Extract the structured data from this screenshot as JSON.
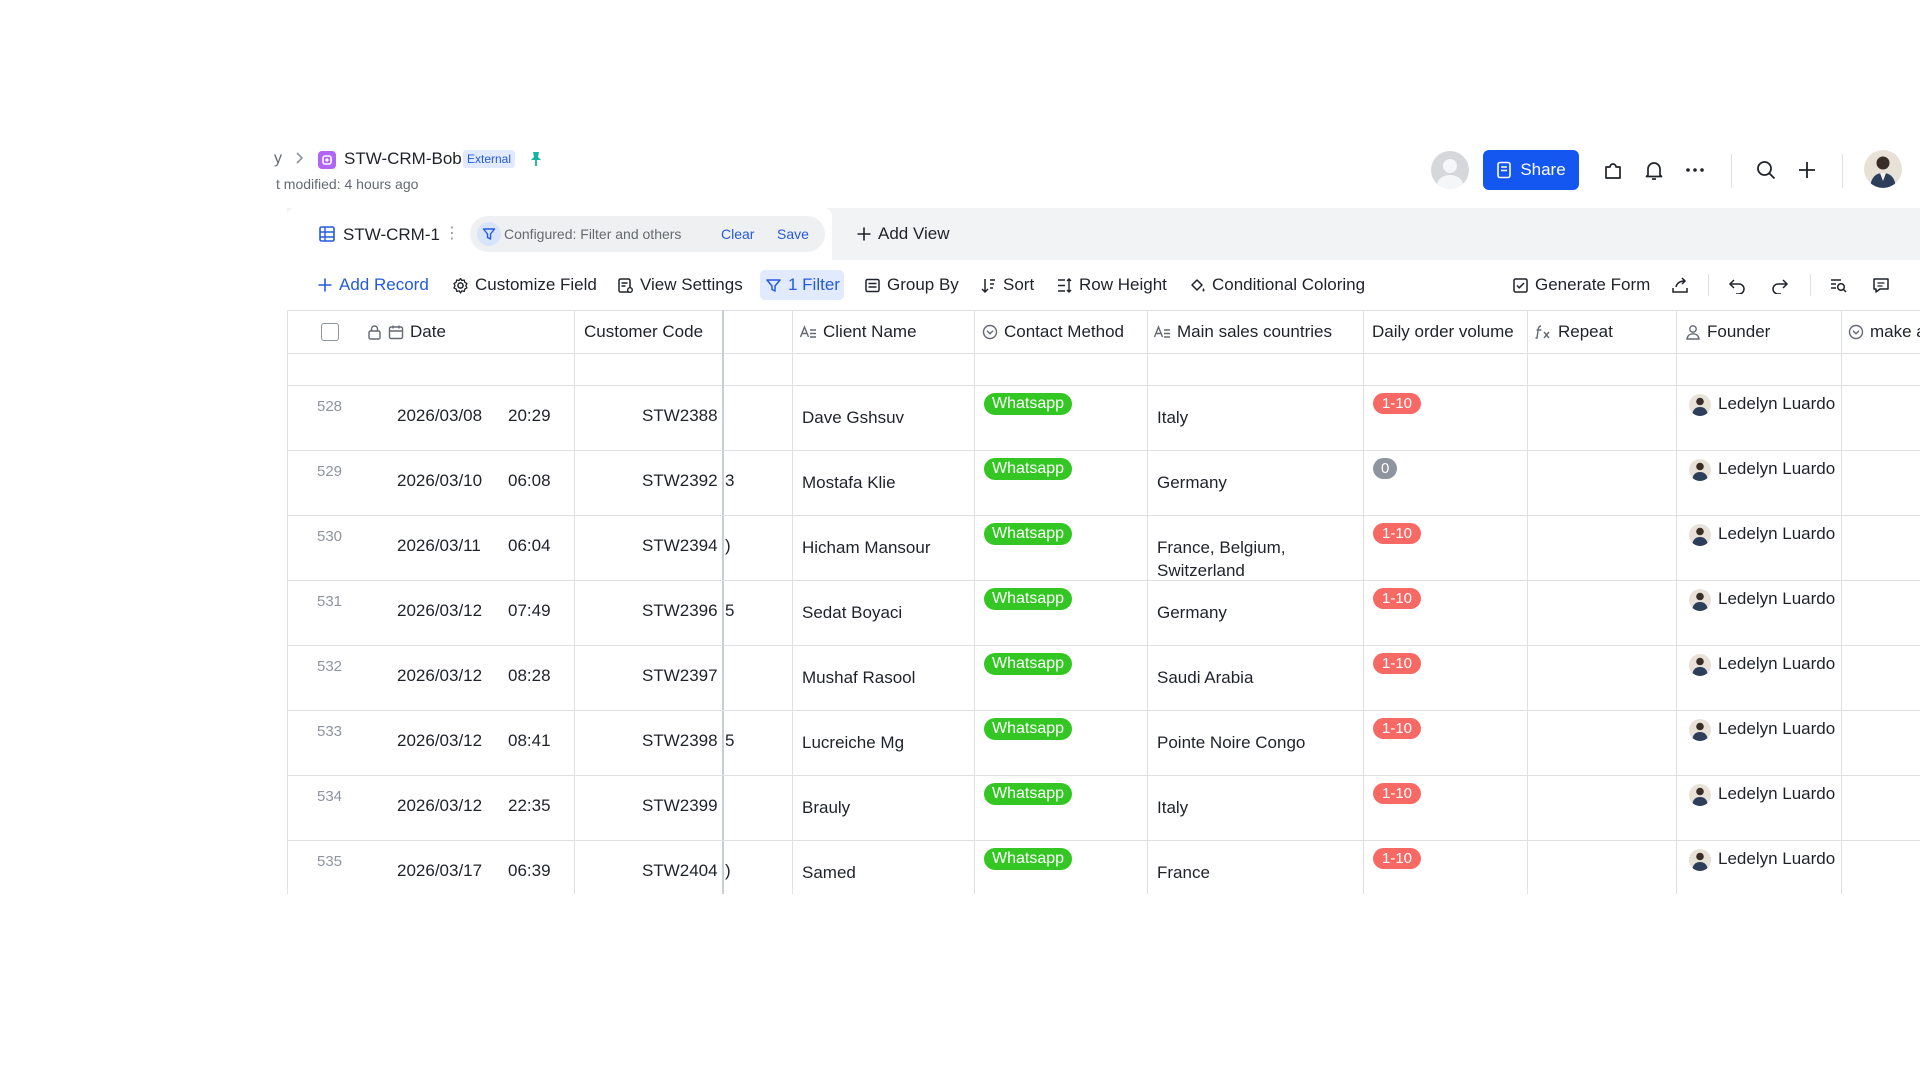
{
  "header": {
    "breadcrumb_prev": "y",
    "title": "STW-CRM-Bob",
    "badge": "External",
    "modified": "t modified: 4 hours ago",
    "share_label": "Share"
  },
  "viewbar": {
    "tab_name": "STW-CRM-1",
    "configured_text": "Configured: Filter and others",
    "clear_label": "Clear",
    "save_label": "Save",
    "add_view_label": "Add View"
  },
  "toolbar": {
    "add_record": "Add Record",
    "customize_field": "Customize Field",
    "view_settings": "View Settings",
    "filter": "1 Filter",
    "group_by": "Group By",
    "sort": "Sort",
    "row_height": "Row Height",
    "conditional_coloring": "Conditional Coloring",
    "generate_form": "Generate Form"
  },
  "columns": {
    "date": "Date",
    "customer_code": "Customer Code",
    "client_name": "Client Name",
    "contact_method": "Contact Method",
    "main_sales_countries": "Main sales countries",
    "daily_order_volume": "Daily order volume",
    "repeat": "Repeat",
    "founder": "Founder",
    "make": "make a"
  },
  "rows": [
    {
      "num": "528",
      "date": "2026/03/08",
      "time": "20:29",
      "code": "STW2388",
      "frag": "",
      "client": "Dave Gshsuv",
      "contact": "Whatsapp",
      "countries_1": "Italy",
      "countries_2": "",
      "volume": "1-10",
      "volume_type": "red",
      "founder": "Ledelyn Luardo"
    },
    {
      "num": "529",
      "date": "2026/03/10",
      "time": "06:08",
      "code": "STW2392",
      "frag": "3",
      "client": "Mostafa Klie",
      "contact": "Whatsapp",
      "countries_1": "Germany",
      "countries_2": "",
      "volume": "0",
      "volume_type": "gray",
      "founder": "Ledelyn Luardo"
    },
    {
      "num": "530",
      "date": "2026/03/11",
      "time": "06:04",
      "code": "STW2394",
      "frag": ")",
      "client": "Hicham Mansour",
      "contact": "Whatsapp",
      "countries_1": "France, Belgium,",
      "countries_2": "Switzerland",
      "volume": "1-10",
      "volume_type": "red",
      "founder": "Ledelyn Luardo"
    },
    {
      "num": "531",
      "date": "2026/03/12",
      "time": "07:49",
      "code": "STW2396",
      "frag": "5",
      "client": "Sedat Boyaci",
      "contact": "Whatsapp",
      "countries_1": "Germany",
      "countries_2": "",
      "volume": "1-10",
      "volume_type": "red",
      "founder": "Ledelyn Luardo"
    },
    {
      "num": "532",
      "date": "2026/03/12",
      "time": "08:28",
      "code": "STW2397",
      "frag": "",
      "client": "Mushaf Rasool",
      "contact": "Whatsapp",
      "countries_1": "Saudi Arabia",
      "countries_2": "",
      "volume": "1-10",
      "volume_type": "red",
      "founder": "Ledelyn Luardo"
    },
    {
      "num": "533",
      "date": "2026/03/12",
      "time": "08:41",
      "code": "STW2398",
      "frag": "5",
      "client": "Lucreiche Mg",
      "contact": "Whatsapp",
      "countries_1": "Pointe Noire Congo",
      "countries_2": "",
      "volume": "1-10",
      "volume_type": "red",
      "founder": "Ledelyn Luardo"
    },
    {
      "num": "534",
      "date": "2026/03/12",
      "time": "22:35",
      "code": "STW2399",
      "frag": "",
      "client": "Brauly",
      "contact": "Whatsapp",
      "countries_1": "Italy",
      "countries_2": "",
      "volume": "1-10",
      "volume_type": "red",
      "founder": "Ledelyn Luardo"
    },
    {
      "num": "535",
      "date": "2026/03/17",
      "time": "06:39",
      "code": "STW2404",
      "frag": ")",
      "client": "Samed",
      "contact": "Whatsapp",
      "countries_1": "France",
      "countries_2": "",
      "volume": "1-10",
      "volume_type": "red",
      "founder": "Ledelyn Luardo"
    }
  ],
  "colors": {
    "accent": "#1456f0",
    "whatsapp_green": "#34c724",
    "volume_red": "#f76964",
    "volume_gray": "#8f959e"
  }
}
